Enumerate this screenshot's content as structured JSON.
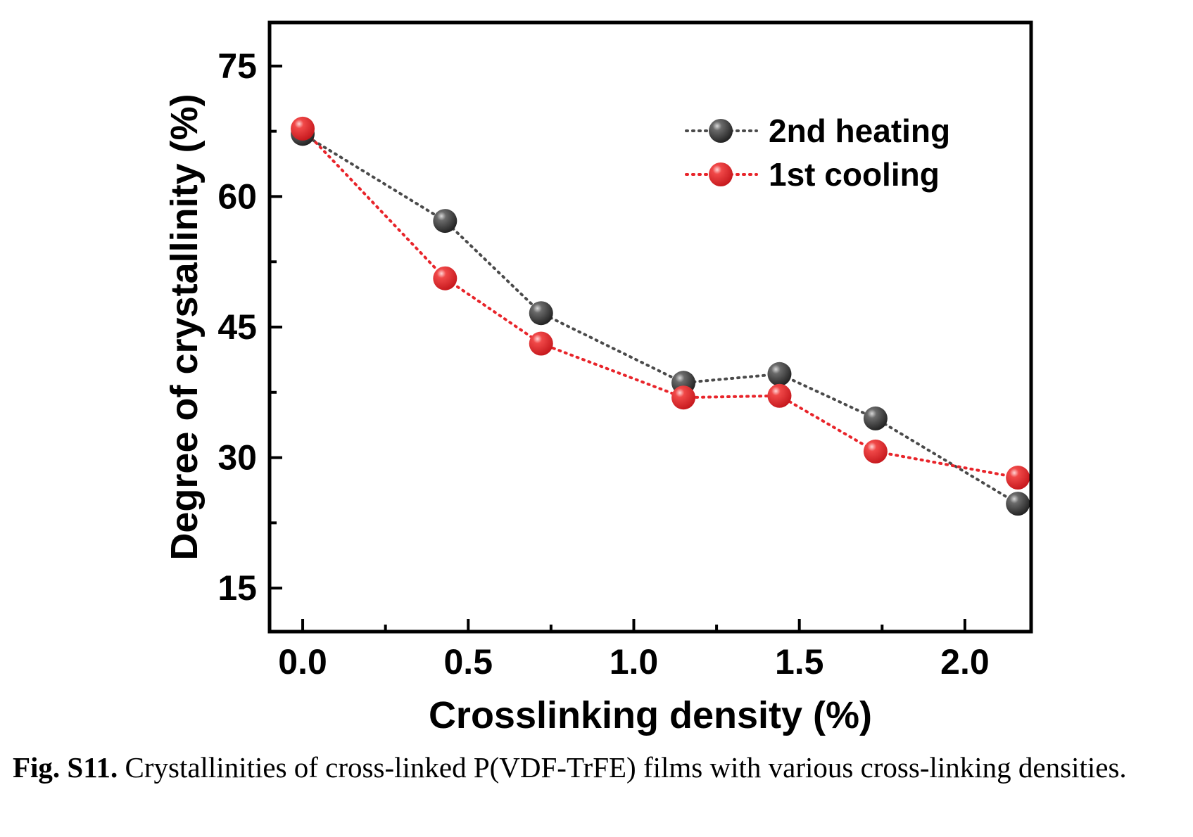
{
  "chart_data": {
    "type": "line",
    "xlabel": "Crosslinking density (%)",
    "ylabel": "Degree of crystallinity (%)",
    "xlim": [
      -0.1,
      2.2
    ],
    "ylim": [
      10,
      80
    ],
    "xticks": [
      0.0,
      0.5,
      1.0,
      1.5,
      2.0
    ],
    "xtick_labels": [
      "0.0",
      "0.5",
      "1.0",
      "1.5",
      "2.0"
    ],
    "yticks": [
      15,
      30,
      45,
      60,
      75
    ],
    "ytick_labels": [
      "15",
      "30",
      "45",
      "60",
      "75"
    ],
    "legend_position": "top-right",
    "grid": false,
    "series": [
      {
        "name": "2nd heating",
        "color": "#4a4a4a",
        "line_style": "dotted",
        "marker": "sphere",
        "x": [
          0.0,
          0.43,
          0.72,
          1.15,
          1.44,
          1.73,
          2.16
        ],
        "y": [
          67.2,
          57.2,
          46.6,
          38.6,
          39.6,
          34.5,
          24.7
        ]
      },
      {
        "name": "1st cooling",
        "color": "#e8242a",
        "line_style": "dotted",
        "marker": "sphere",
        "x": [
          0.0,
          0.43,
          0.72,
          1.15,
          1.44,
          1.73,
          2.16
        ],
        "y": [
          67.8,
          50.6,
          43.1,
          36.9,
          37.1,
          30.7,
          27.7
        ]
      }
    ]
  },
  "caption": {
    "label": "Fig. S11.",
    "text": " Crystallinities of cross-linked P(VDF-TrFE) films with various cross-linking densities."
  }
}
